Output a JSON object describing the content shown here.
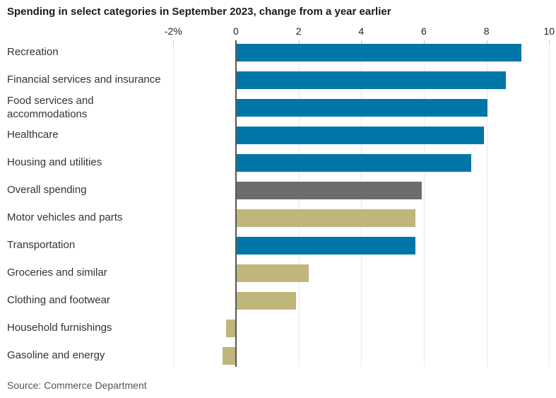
{
  "title": "Spending in select categories in September 2023, change from a year earlier",
  "source": "Source: Commerce Department",
  "colors": {
    "blue": "#0076a8",
    "khaki": "#bfb67c",
    "gray": "#6d6d6d",
    "axis_line": "#565656",
    "gridline": "#e9e9e9",
    "tick": "#c0c0c0",
    "title_text": "#1a1a1a",
    "label_text": "#333333",
    "axis_text": "#222222",
    "source_text": "#555555",
    "background": "#ffffff"
  },
  "chart_data": {
    "type": "bar",
    "orientation": "horizontal",
    "title": "Spending in select categories in September 2023, change from a year earlier",
    "xlabel": "",
    "ylabel": "",
    "xlim": [
      -2,
      10
    ],
    "grid": true,
    "legend": "none",
    "x_ticks": [
      {
        "value": -2,
        "label": "-2%"
      },
      {
        "value": 0,
        "label": "0"
      },
      {
        "value": 2,
        "label": "2"
      },
      {
        "value": 4,
        "label": "4"
      },
      {
        "value": 6,
        "label": "6"
      },
      {
        "value": 8,
        "label": "8"
      },
      {
        "value": 10,
        "label": "10"
      }
    ],
    "rows": [
      {
        "category": "Recreation",
        "value": 9.1,
        "color_role": "blue"
      },
      {
        "category": "Financial services and insurance",
        "value": 8.6,
        "color_role": "blue"
      },
      {
        "category": "Food services and accommodations",
        "value": 8.0,
        "color_role": "blue"
      },
      {
        "category": "Healthcare",
        "value": 7.9,
        "color_role": "blue"
      },
      {
        "category": "Housing and utilities",
        "value": 7.5,
        "color_role": "blue"
      },
      {
        "category": "Overall spending",
        "value": 5.9,
        "color_role": "gray"
      },
      {
        "category": "Motor vehicles and parts",
        "value": 5.7,
        "color_role": "khaki"
      },
      {
        "category": "Transportation",
        "value": 5.7,
        "color_role": "blue"
      },
      {
        "category": "Groceries and similar",
        "value": 2.3,
        "color_role": "khaki"
      },
      {
        "category": "Clothing and footwear",
        "value": 1.9,
        "color_role": "khaki"
      },
      {
        "category": "Household furnishings",
        "value": -0.3,
        "color_role": "khaki"
      },
      {
        "category": "Gasoline and energy",
        "value": -0.4,
        "color_role": "khaki"
      }
    ],
    "source": "Source: Commerce Department"
  }
}
